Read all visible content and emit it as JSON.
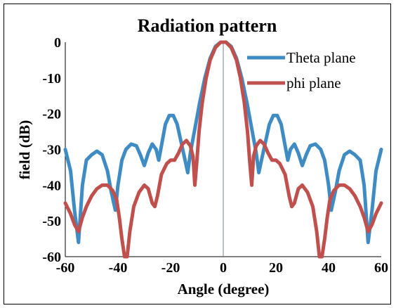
{
  "chart_data": {
    "type": "line",
    "title": "Radiation pattern",
    "xlabel": "Angle (degree)",
    "ylabel": "field (dB)",
    "xlim": [
      -60,
      60
    ],
    "ylim": [
      -60,
      0
    ],
    "x_ticks": [
      "-60",
      "-40",
      "-20",
      "0",
      "20",
      "40",
      "60"
    ],
    "y_ticks": [
      "0",
      "-10",
      "-20",
      "-30",
      "-40",
      "-50",
      "-60"
    ],
    "grid": false,
    "legend_position": "top-right",
    "series": [
      {
        "name": "Theta plane",
        "color": "#3f8cc4",
        "points": [
          [
            -60,
            -30
          ],
          [
            -58,
            -36
          ],
          [
            -56.5,
            -47
          ],
          [
            -55,
            -56
          ],
          [
            -53.5,
            -40
          ],
          [
            -52,
            -33
          ],
          [
            -50,
            -31.5
          ],
          [
            -48,
            -30.5
          ],
          [
            -46,
            -31.5
          ],
          [
            -44,
            -36
          ],
          [
            -42.5,
            -42
          ],
          [
            -41,
            -47
          ],
          [
            -40,
            -40
          ],
          [
            -38.5,
            -33
          ],
          [
            -37,
            -30
          ],
          [
            -35,
            -28.5
          ],
          [
            -33,
            -29
          ],
          [
            -31.5,
            -31.5
          ],
          [
            -30,
            -34.5
          ],
          [
            -28.5,
            -31
          ],
          [
            -27,
            -28.5
          ],
          [
            -25.5,
            -30
          ],
          [
            -24.5,
            -33
          ],
          [
            -23.5,
            -29
          ],
          [
            -22,
            -23
          ],
          [
            -20.5,
            -20.5
          ],
          [
            -19,
            -20.5
          ],
          [
            -17.5,
            -23
          ],
          [
            -16,
            -28
          ],
          [
            -14.5,
            -33
          ],
          [
            -13.5,
            -36.5
          ],
          [
            -12.5,
            -31
          ],
          [
            -11,
            -25
          ],
          [
            -9,
            -17
          ],
          [
            -7,
            -10
          ],
          [
            -5,
            -4.5
          ],
          [
            -3,
            -1.2
          ],
          [
            -1,
            0
          ],
          [
            0,
            0
          ],
          [
            1,
            0
          ],
          [
            3,
            -1.2
          ],
          [
            5,
            -4.5
          ],
          [
            7,
            -10
          ],
          [
            9,
            -17
          ],
          [
            11,
            -25
          ],
          [
            12.5,
            -31
          ],
          [
            13.5,
            -36.5
          ],
          [
            14.5,
            -33
          ],
          [
            16,
            -28
          ],
          [
            17.5,
            -23
          ],
          [
            19,
            -20.5
          ],
          [
            20.5,
            -20.5
          ],
          [
            22,
            -23
          ],
          [
            23.5,
            -29
          ],
          [
            24.5,
            -33
          ],
          [
            25.5,
            -30
          ],
          [
            27,
            -28.5
          ],
          [
            28.5,
            -31
          ],
          [
            30,
            -34.5
          ],
          [
            31.5,
            -31.5
          ],
          [
            33,
            -29
          ],
          [
            35,
            -28.5
          ],
          [
            37,
            -30
          ],
          [
            38.5,
            -33
          ],
          [
            40,
            -40
          ],
          [
            41,
            -47
          ],
          [
            42.5,
            -42
          ],
          [
            44,
            -36
          ],
          [
            46,
            -31.5
          ],
          [
            48,
            -30.5
          ],
          [
            50,
            -31.5
          ],
          [
            52,
            -33
          ],
          [
            53.5,
            -40
          ],
          [
            55,
            -56
          ],
          [
            56.5,
            -47
          ],
          [
            58,
            -36
          ],
          [
            60,
            -30
          ]
        ]
      },
      {
        "name": "phi plane",
        "color": "#c0504d",
        "points": [
          [
            -60,
            -45
          ],
          [
            -58,
            -48
          ],
          [
            -56.5,
            -51
          ],
          [
            -55,
            -53
          ],
          [
            -53.5,
            -49
          ],
          [
            -52,
            -46
          ],
          [
            -50,
            -43
          ],
          [
            -48,
            -41
          ],
          [
            -46,
            -40
          ],
          [
            -44,
            -40
          ],
          [
            -42,
            -41.5
          ],
          [
            -40.5,
            -44
          ],
          [
            -39.5,
            -49
          ],
          [
            -38.5,
            -55
          ],
          [
            -37.5,
            -60
          ],
          [
            -36.5,
            -60
          ],
          [
            -35.5,
            -53
          ],
          [
            -34,
            -46
          ],
          [
            -32,
            -42
          ],
          [
            -30,
            -40
          ],
          [
            -28.5,
            -41
          ],
          [
            -27,
            -45
          ],
          [
            -26,
            -46
          ],
          [
            -25,
            -43
          ],
          [
            -23.5,
            -37
          ],
          [
            -21.5,
            -34
          ],
          [
            -20,
            -33
          ],
          [
            -18.5,
            -33
          ],
          [
            -17,
            -31
          ],
          [
            -15.5,
            -28.5
          ],
          [
            -14,
            -27.5
          ],
          [
            -12.5,
            -29
          ],
          [
            -11.5,
            -32
          ],
          [
            -10.8,
            -40
          ],
          [
            -10,
            -33
          ],
          [
            -9.2,
            -25
          ],
          [
            -8,
            -17
          ],
          [
            -6.5,
            -10
          ],
          [
            -5,
            -5
          ],
          [
            -3,
            -1.5
          ],
          [
            -1,
            0
          ],
          [
            0,
            0
          ],
          [
            1,
            0
          ],
          [
            3,
            -1.5
          ],
          [
            5,
            -5
          ],
          [
            6.5,
            -10
          ],
          [
            8,
            -17
          ],
          [
            9.2,
            -25
          ],
          [
            10,
            -33
          ],
          [
            10.8,
            -40
          ],
          [
            11.5,
            -32
          ],
          [
            12.5,
            -29
          ],
          [
            14,
            -27.5
          ],
          [
            15.5,
            -28.5
          ],
          [
            17,
            -31
          ],
          [
            18.5,
            -33
          ],
          [
            20,
            -33
          ],
          [
            21.5,
            -34
          ],
          [
            23.5,
            -37
          ],
          [
            25,
            -43
          ],
          [
            26,
            -46
          ],
          [
            27,
            -45
          ],
          [
            28.5,
            -41
          ],
          [
            30,
            -40
          ],
          [
            32,
            -42
          ],
          [
            34,
            -46
          ],
          [
            35.5,
            -53
          ],
          [
            36.5,
            -60
          ],
          [
            37.5,
            -60
          ],
          [
            38.5,
            -55
          ],
          [
            39.5,
            -49
          ],
          [
            40.5,
            -44
          ],
          [
            42,
            -41.5
          ],
          [
            44,
            -40
          ],
          [
            46,
            -40
          ],
          [
            48,
            -41
          ],
          [
            50,
            -43
          ],
          [
            52,
            -46
          ],
          [
            53.5,
            -49
          ],
          [
            55,
            -53
          ],
          [
            56.5,
            -51
          ],
          [
            58,
            -48
          ],
          [
            60,
            -45
          ]
        ]
      }
    ]
  }
}
